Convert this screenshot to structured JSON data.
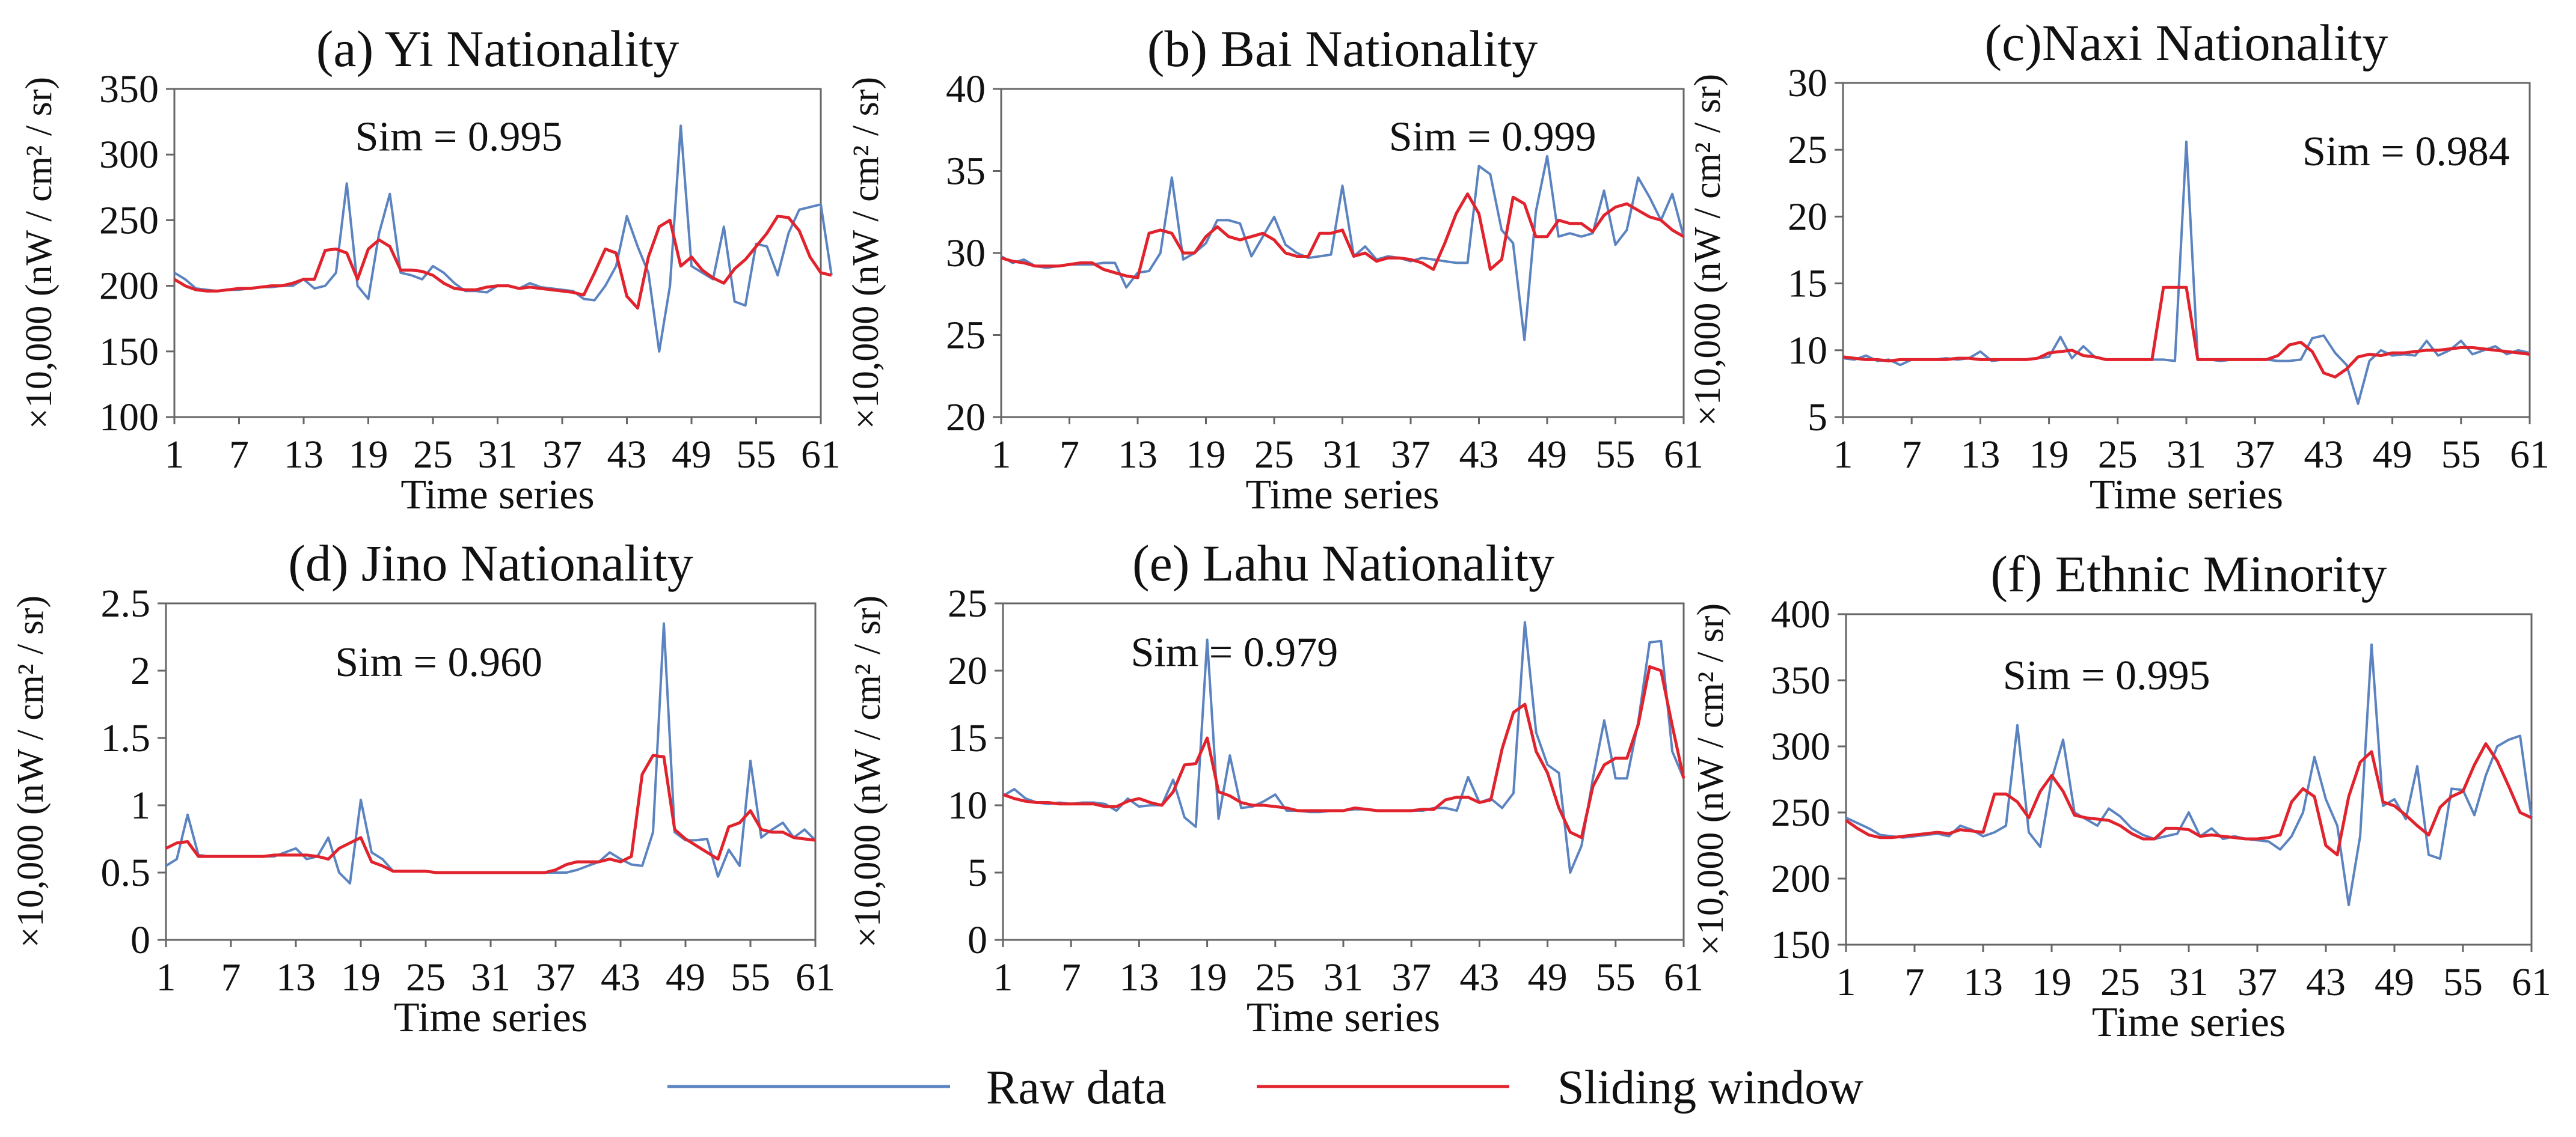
{
  "legend": {
    "raw_label": "Raw data",
    "sliding_label": "Sliding window"
  },
  "colors": {
    "raw": "#5b83c0",
    "sliding": "#e0232d",
    "axis": "#666666",
    "text": "#111111"
  },
  "chart_data": [
    {
      "id": "a",
      "type": "line",
      "title": "(a) Yi Nationality",
      "xlabel": "Time series",
      "ylabel": "×10,000 (nW / cm² / sr)",
      "xticks": [
        1,
        7,
        13,
        19,
        25,
        31,
        37,
        43,
        49,
        55,
        61
      ],
      "yticks": [
        100,
        150,
        200,
        250,
        300,
        350
      ],
      "ylim": [
        100,
        350
      ],
      "xlim": [
        1,
        61
      ],
      "annotation": "Sim = 0.995",
      "legend_position": "bottom",
      "series": [
        {
          "name": "Raw data",
          "values": [
            210,
            205,
            198,
            197,
            196,
            197,
            197,
            198,
            199,
            199,
            200,
            200,
            205,
            198,
            200,
            210,
            278,
            200,
            190,
            240,
            270,
            210,
            208,
            205,
            215,
            210,
            202,
            196,
            196,
            195,
            200,
            200,
            198,
            202,
            199,
            198,
            197,
            196,
            190,
            189,
            200,
            215,
            253,
            230,
            210,
            150,
            200,
            322,
            215,
            210,
            205,
            245,
            188,
            185,
            232,
            230,
            208,
            240,
            258,
            260,
            262,
            208
          ]
        },
        {
          "name": "Sliding window",
          "values": [
            205,
            200,
            197,
            196,
            196,
            197,
            198,
            198,
            199,
            200,
            200,
            202,
            205,
            205,
            227,
            228,
            225,
            205,
            228,
            235,
            230,
            212,
            212,
            211,
            208,
            202,
            198,
            197,
            197,
            199,
            200,
            200,
            198,
            199,
            198,
            197,
            196,
            195,
            193,
            210,
            228,
            225,
            192,
            183,
            222,
            245,
            250,
            215,
            222,
            212,
            206,
            202,
            213,
            220,
            230,
            240,
            253,
            252,
            242,
            222,
            210,
            208
          ]
        }
      ]
    },
    {
      "id": "b",
      "type": "line",
      "title": "(b) Bai Nationality",
      "xlabel": "Time series",
      "ylabel": "×10,000 (nW / cm² / sr)",
      "xticks": [
        1,
        7,
        13,
        19,
        25,
        31,
        37,
        43,
        49,
        55,
        61
      ],
      "yticks": [
        20,
        25,
        30,
        35,
        40
      ],
      "ylim": [
        20,
        40
      ],
      "xlim": [
        1,
        61
      ],
      "annotation": "Sim = 0.999",
      "legend_position": "bottom",
      "series": [
        {
          "name": "Raw data",
          "values": [
            29.8,
            29.4,
            29.6,
            29.2,
            29.1,
            29.2,
            29.3,
            29.3,
            29.3,
            29.4,
            29.4,
            27.9,
            28.8,
            28.9,
            30.0,
            34.6,
            29.6,
            30.0,
            30.6,
            32.0,
            32.0,
            31.8,
            29.8,
            31.0,
            32.2,
            30.5,
            30.0,
            29.7,
            29.8,
            29.9,
            34.1,
            29.8,
            30.4,
            29.6,
            29.8,
            29.7,
            29.5,
            29.7,
            29.6,
            29.5,
            29.4,
            29.4,
            35.3,
            34.8,
            31.4,
            30.6,
            24.7,
            32.5,
            35.9,
            31.0,
            31.2,
            31.0,
            31.2,
            33.8,
            30.5,
            31.4,
            34.6,
            33.4,
            32.0,
            33.6,
            31.0
          ]
        },
        {
          "name": "Sliding window",
          "values": [
            29.7,
            29.5,
            29.4,
            29.2,
            29.2,
            29.2,
            29.3,
            29.4,
            29.4,
            29.0,
            28.8,
            28.6,
            28.5,
            31.2,
            31.4,
            31.2,
            30.0,
            30.0,
            31.0,
            31.6,
            31.0,
            30.8,
            31.0,
            31.2,
            30.8,
            30.0,
            29.8,
            29.8,
            31.2,
            31.2,
            31.4,
            29.8,
            30.0,
            29.5,
            29.7,
            29.7,
            29.6,
            29.4,
            29.0,
            30.6,
            32.4,
            33.6,
            32.4,
            29.0,
            29.6,
            33.4,
            33.0,
            31.0,
            31.0,
            32.0,
            31.8,
            31.8,
            31.3,
            32.3,
            32.8,
            33.0,
            32.6,
            32.2,
            32.0,
            31.4,
            31.0
          ]
        }
      ]
    },
    {
      "id": "c",
      "type": "line",
      "title": "(c)Naxi Nationality",
      "xlabel": "Time series",
      "ylabel": "×10,000 (nW / cm² / sr)",
      "xticks": [
        1,
        7,
        13,
        19,
        25,
        31,
        37,
        43,
        49,
        55,
        61
      ],
      "yticks": [
        5,
        10,
        15,
        20,
        25,
        30
      ],
      "ylim": [
        5,
        30
      ],
      "xlim": [
        1,
        61
      ],
      "annotation": "Sim = 0.984",
      "legend_position": "bottom",
      "series": [
        {
          "name": "Raw data",
          "values": [
            9.4,
            9.3,
            9.6,
            9.2,
            9.3,
            8.9,
            9.3,
            9.3,
            9.3,
            9.4,
            9.3,
            9.4,
            9.9,
            9.2,
            9.3,
            9.3,
            9.3,
            9.4,
            9.5,
            11.0,
            9.4,
            10.3,
            9.5,
            9.3,
            9.3,
            9.3,
            9.3,
            9.3,
            9.3,
            9.2,
            25.6,
            9.3,
            9.3,
            9.2,
            9.3,
            9.3,
            9.3,
            9.3,
            9.2,
            9.2,
            9.3,
            10.9,
            11.1,
            9.8,
            8.9,
            6.0,
            9.2,
            10.0,
            9.6,
            9.7,
            9.6,
            10.7,
            9.6,
            10.0,
            10.7,
            9.7,
            10.0,
            10.3,
            9.7,
            10.0,
            9.8
          ]
        },
        {
          "name": "Sliding window",
          "values": [
            9.5,
            9.4,
            9.3,
            9.3,
            9.2,
            9.3,
            9.3,
            9.3,
            9.3,
            9.3,
            9.4,
            9.4,
            9.3,
            9.3,
            9.3,
            9.3,
            9.3,
            9.4,
            9.8,
            9.9,
            10.0,
            9.6,
            9.5,
            9.3,
            9.3,
            9.3,
            9.3,
            9.3,
            14.7,
            14.7,
            14.7,
            9.3,
            9.3,
            9.3,
            9.3,
            9.3,
            9.3,
            9.3,
            9.6,
            10.4,
            10.6,
            9.9,
            8.3,
            8.0,
            8.6,
            9.5,
            9.7,
            9.6,
            9.8,
            9.8,
            9.9,
            10.0,
            10.0,
            10.1,
            10.2,
            10.2,
            10.1,
            10.0,
            9.9,
            9.8,
            9.7
          ]
        }
      ]
    },
    {
      "id": "d",
      "type": "line",
      "title": "(d) Jino Nationality",
      "xlabel": "Time series",
      "ylabel": "×10,000 (nW / cm² / sr)",
      "xticks": [
        1,
        7,
        13,
        19,
        25,
        31,
        37,
        43,
        49,
        55,
        61
      ],
      "yticks": [
        0,
        0.5,
        1,
        1.5,
        2,
        2.5
      ],
      "ylim": [
        0,
        2.5
      ],
      "xlim": [
        1,
        61
      ],
      "annotation": "Sim = 0.960",
      "legend_position": "bottom",
      "series": [
        {
          "name": "Raw data",
          "values": [
            0.55,
            0.6,
            0.93,
            0.63,
            0.62,
            0.62,
            0.62,
            0.62,
            0.62,
            0.62,
            0.62,
            0.65,
            0.68,
            0.6,
            0.62,
            0.76,
            0.5,
            0.42,
            1.04,
            0.65,
            0.6,
            0.51,
            0.51,
            0.51,
            0.51,
            0.5,
            0.5,
            0.5,
            0.5,
            0.5,
            0.5,
            0.5,
            0.5,
            0.5,
            0.5,
            0.5,
            0.5,
            0.5,
            0.52,
            0.55,
            0.58,
            0.65,
            0.6,
            0.56,
            0.55,
            0.8,
            2.35,
            0.8,
            0.74,
            0.74,
            0.75,
            0.47,
            0.67,
            0.55,
            1.33,
            0.76,
            0.82,
            0.87,
            0.76,
            0.82,
            0.74
          ]
        },
        {
          "name": "Sliding window",
          "values": [
            0.68,
            0.72,
            0.73,
            0.62,
            0.62,
            0.62,
            0.62,
            0.62,
            0.62,
            0.62,
            0.63,
            0.63,
            0.63,
            0.63,
            0.62,
            0.6,
            0.68,
            0.72,
            0.76,
            0.58,
            0.55,
            0.51,
            0.51,
            0.51,
            0.51,
            0.5,
            0.5,
            0.5,
            0.5,
            0.5,
            0.5,
            0.5,
            0.5,
            0.5,
            0.5,
            0.5,
            0.52,
            0.56,
            0.58,
            0.58,
            0.58,
            0.6,
            0.58,
            0.62,
            1.23,
            1.37,
            1.36,
            0.82,
            0.75,
            0.7,
            0.65,
            0.6,
            0.84,
            0.87,
            0.96,
            0.82,
            0.8,
            0.8,
            0.76,
            0.75,
            0.74
          ]
        }
      ]
    },
    {
      "id": "e",
      "type": "line",
      "title": "(e) Lahu Nationality",
      "xlabel": "Time series",
      "ylabel": "×10,000 (nW / cm² / sr)",
      "xticks": [
        1,
        7,
        13,
        19,
        25,
        31,
        37,
        43,
        49,
        55,
        61
      ],
      "yticks": [
        0,
        5,
        10,
        15,
        20,
        25
      ],
      "ylim": [
        0,
        25
      ],
      "xlim": [
        1,
        61
      ],
      "annotation": "Sim = 0.979",
      "legend_position": "bottom",
      "series": [
        {
          "name": "Raw data",
          "values": [
            10.7,
            11.2,
            10.5,
            10.2,
            10.1,
            10.2,
            10.1,
            10.2,
            10.2,
            10.1,
            9.6,
            10.5,
            9.9,
            10.0,
            10.0,
            11.9,
            9.1,
            8.4,
            22.3,
            9.0,
            13.7,
            9.8,
            9.9,
            10.3,
            10.8,
            9.6,
            9.6,
            9.5,
            9.5,
            9.6,
            9.6,
            9.7,
            9.7,
            9.6,
            9.6,
            9.6,
            9.6,
            9.6,
            9.8,
            9.8,
            9.6,
            12.1,
            10.2,
            10.5,
            9.8,
            10.9,
            23.6,
            15.4,
            13.0,
            12.4,
            5.0,
            7.0,
            12.0,
            16.3,
            12.0,
            12.0,
            16.2,
            22.1,
            22.2,
            14.0,
            12.0
          ]
        },
        {
          "name": "Sliding window",
          "values": [
            10.8,
            10.5,
            10.3,
            10.2,
            10.2,
            10.1,
            10.1,
            10.1,
            10.1,
            9.9,
            9.9,
            10.3,
            10.5,
            10.2,
            10.0,
            11.0,
            13.0,
            13.1,
            15.0,
            11.0,
            10.7,
            10.2,
            10.0,
            10.0,
            9.9,
            9.8,
            9.6,
            9.6,
            9.6,
            9.6,
            9.6,
            9.8,
            9.7,
            9.6,
            9.6,
            9.6,
            9.6,
            9.7,
            9.7,
            10.4,
            10.6,
            10.6,
            10.2,
            10.4,
            14.2,
            16.9,
            17.5,
            14.0,
            12.4,
            9.8,
            8.0,
            7.6,
            11.4,
            13.0,
            13.5,
            13.5,
            16.0,
            20.3,
            20.0,
            15.9,
            12.0
          ]
        }
      ]
    },
    {
      "id": "f",
      "type": "line",
      "title": "(f) Ethnic Minority",
      "xlabel": "Time series",
      "ylabel": "×10,000 (nW / cm² / sr)",
      "xticks": [
        1,
        7,
        13,
        19,
        25,
        31,
        37,
        43,
        49,
        55,
        61
      ],
      "yticks": [
        150,
        200,
        250,
        300,
        350,
        400
      ],
      "ylim": [
        150,
        400
      ],
      "xlim": [
        1,
        61
      ],
      "annotation": "Sim = 0.995",
      "legend_position": "bottom",
      "series": [
        {
          "name": "Raw data",
          "values": [
            246,
            242,
            238,
            233,
            232,
            231,
            232,
            233,
            234,
            232,
            240,
            237,
            232,
            235,
            240,
            316,
            235,
            224,
            275,
            305,
            250,
            245,
            240,
            253,
            247,
            238,
            233,
            230,
            232,
            234,
            250,
            232,
            238,
            230,
            232,
            230,
            229,
            228,
            222,
            232,
            250,
            292,
            260,
            240,
            180,
            232,
            377,
            255,
            260,
            245,
            285,
            218,
            215,
            268,
            267,
            248,
            278,
            300,
            305,
            308,
            246
          ]
        },
        {
          "name": "Sliding window",
          "values": [
            244,
            238,
            233,
            231,
            231,
            232,
            233,
            234,
            235,
            234,
            237,
            236,
            235,
            264,
            264,
            258,
            246,
            266,
            278,
            266,
            248,
            246,
            245,
            244,
            240,
            234,
            230,
            230,
            238,
            238,
            237,
            232,
            233,
            232,
            231,
            230,
            230,
            231,
            233,
            258,
            268,
            262,
            225,
            218,
            262,
            288,
            296,
            258,
            255,
            248,
            240,
            233,
            254,
            262,
            266,
            286,
            302,
            289,
            270,
            250,
            246
          ]
        }
      ]
    }
  ]
}
